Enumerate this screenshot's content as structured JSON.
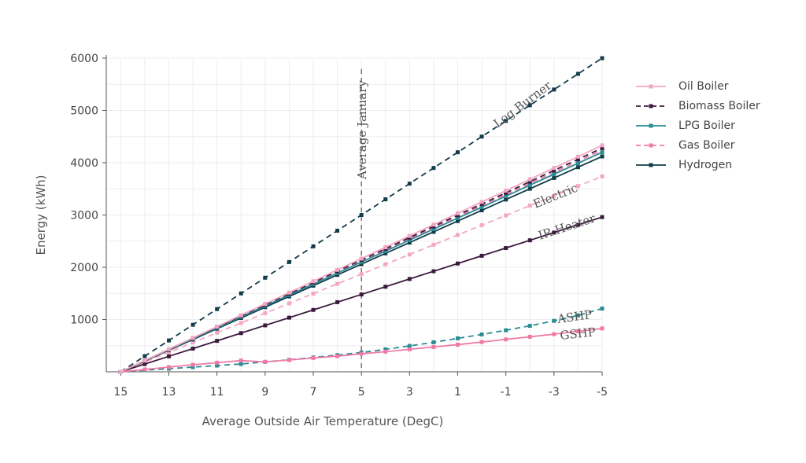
{
  "chart_data": {
    "type": "line",
    "xlabel": "Average Outside Air Temperature (DegC)",
    "ylabel": "Energy (kWh)",
    "x": [
      15,
      14,
      13,
      12,
      11,
      10,
      9,
      8,
      7,
      6,
      5,
      4,
      3,
      2,
      1,
      0,
      -1,
      -2,
      -3,
      -4,
      -5
    ],
    "x_ticks": [
      15,
      13,
      11,
      9,
      7,
      5,
      3,
      1,
      -1,
      -3,
      -5
    ],
    "x_reversed": true,
    "xlim": [
      15.6,
      -5
    ],
    "ylim": [
      0,
      6000
    ],
    "y_ticks": [
      1000,
      2000,
      3000,
      4000,
      5000,
      6000
    ],
    "grid": true,
    "legend_position": "right",
    "series": [
      {
        "name": "Oil Boiler",
        "color": "#f4a7c3",
        "dashed": false,
        "legend": true,
        "values": [
          0,
          217,
          433,
          650,
          866,
          1083,
          1300,
          1516,
          1733,
          1950,
          2166,
          2383,
          2600,
          2816,
          3033,
          3250,
          3466,
          3683,
          3900,
          4116,
          4333
        ]
      },
      {
        "name": "Biomass Boiler",
        "color": "#3b1a3e",
        "dashed": true,
        "legend": true,
        "values": [
          0,
          214,
          428,
          642,
          856,
          1070,
          1284,
          1498,
          1712,
          1926,
          2140,
          2354,
          2568,
          2782,
          2996,
          3210,
          3424,
          3638,
          3852,
          4066,
          4280
        ]
      },
      {
        "name": "LPG Boiler",
        "color": "#2a8c94",
        "dashed": false,
        "legend": true,
        "values": [
          0,
          210,
          420,
          630,
          840,
          1050,
          1260,
          1470,
          1680,
          1890,
          2100,
          2310,
          2520,
          2730,
          2940,
          3150,
          3360,
          3570,
          3780,
          3990,
          4200
        ]
      },
      {
        "name": "Gas Boiler",
        "color": "#f07aa6",
        "dashed": true,
        "legend": true,
        "values": [
          0,
          212,
          424,
          636,
          848,
          1060,
          1272,
          1484,
          1696,
          1908,
          2120,
          2332,
          2544,
          2756,
          2968,
          3180,
          3392,
          3604,
          3816,
          4028,
          4240
        ]
      },
      {
        "name": "Hydrogen",
        "color": "#123c4a",
        "dashed": false,
        "legend": true,
        "values": [
          0,
          206,
          412,
          618,
          824,
          1030,
          1236,
          1442,
          1648,
          1854,
          2060,
          2266,
          2472,
          2678,
          2884,
          3090,
          3296,
          3502,
          3708,
          3914,
          4120
        ]
      },
      {
        "name": "Log Burner",
        "color": "#123c4a",
        "dashed": true,
        "legend": false,
        "values": [
          0,
          300,
          600,
          900,
          1200,
          1500,
          1800,
          2100,
          2400,
          2700,
          3000,
          3300,
          3600,
          3900,
          4200,
          4500,
          4800,
          5100,
          5400,
          5700,
          6000
        ]
      },
      {
        "name": "Electric",
        "color": "#f4a7c3",
        "dashed": true,
        "legend": false,
        "values": [
          0,
          187,
          374,
          561,
          748,
          935,
          1122,
          1309,
          1496,
          1683,
          1870,
          2057,
          2244,
          2431,
          2618,
          2805,
          2992,
          3179,
          3366,
          3553,
          3740
        ]
      },
      {
        "name": "IR Heater",
        "color": "#3b1a3e",
        "dashed": false,
        "legend": false,
        "values": [
          0,
          148,
          296,
          444,
          592,
          740,
          888,
          1036,
          1184,
          1332,
          1480,
          1628,
          1776,
          1924,
          2072,
          2220,
          2368,
          2516,
          2664,
          2812,
          2960
        ]
      },
      {
        "name": "ASHP",
        "color": "#2a8c94",
        "dashed": true,
        "legend": false,
        "values": [
          0,
          30,
          60,
          90,
          120,
          150,
          190,
          230,
          275,
          320,
          370,
          430,
          495,
          565,
          640,
          715,
          795,
          880,
          975,
          1080,
          1210
        ]
      },
      {
        "name": "GSHP",
        "color": "#f07aa6",
        "dashed": false,
        "legend": false,
        "values": [
          0,
          45,
          90,
          135,
          175,
          215,
          190,
          225,
          265,
          300,
          345,
          385,
          430,
          475,
          520,
          570,
          620,
          670,
          720,
          775,
          830
        ]
      }
    ],
    "annotations": [
      {
        "text": "Average January",
        "x": 5,
        "type": "vline"
      },
      {
        "text": "Log Burner",
        "series": "Log Burner"
      },
      {
        "text": "Electric",
        "series": "Electric"
      },
      {
        "text": "IR Heater",
        "series": "IR Heater"
      },
      {
        "text": "ASHP",
        "series": "ASHP"
      },
      {
        "text": "GSHP",
        "series": "GSHP"
      }
    ]
  }
}
